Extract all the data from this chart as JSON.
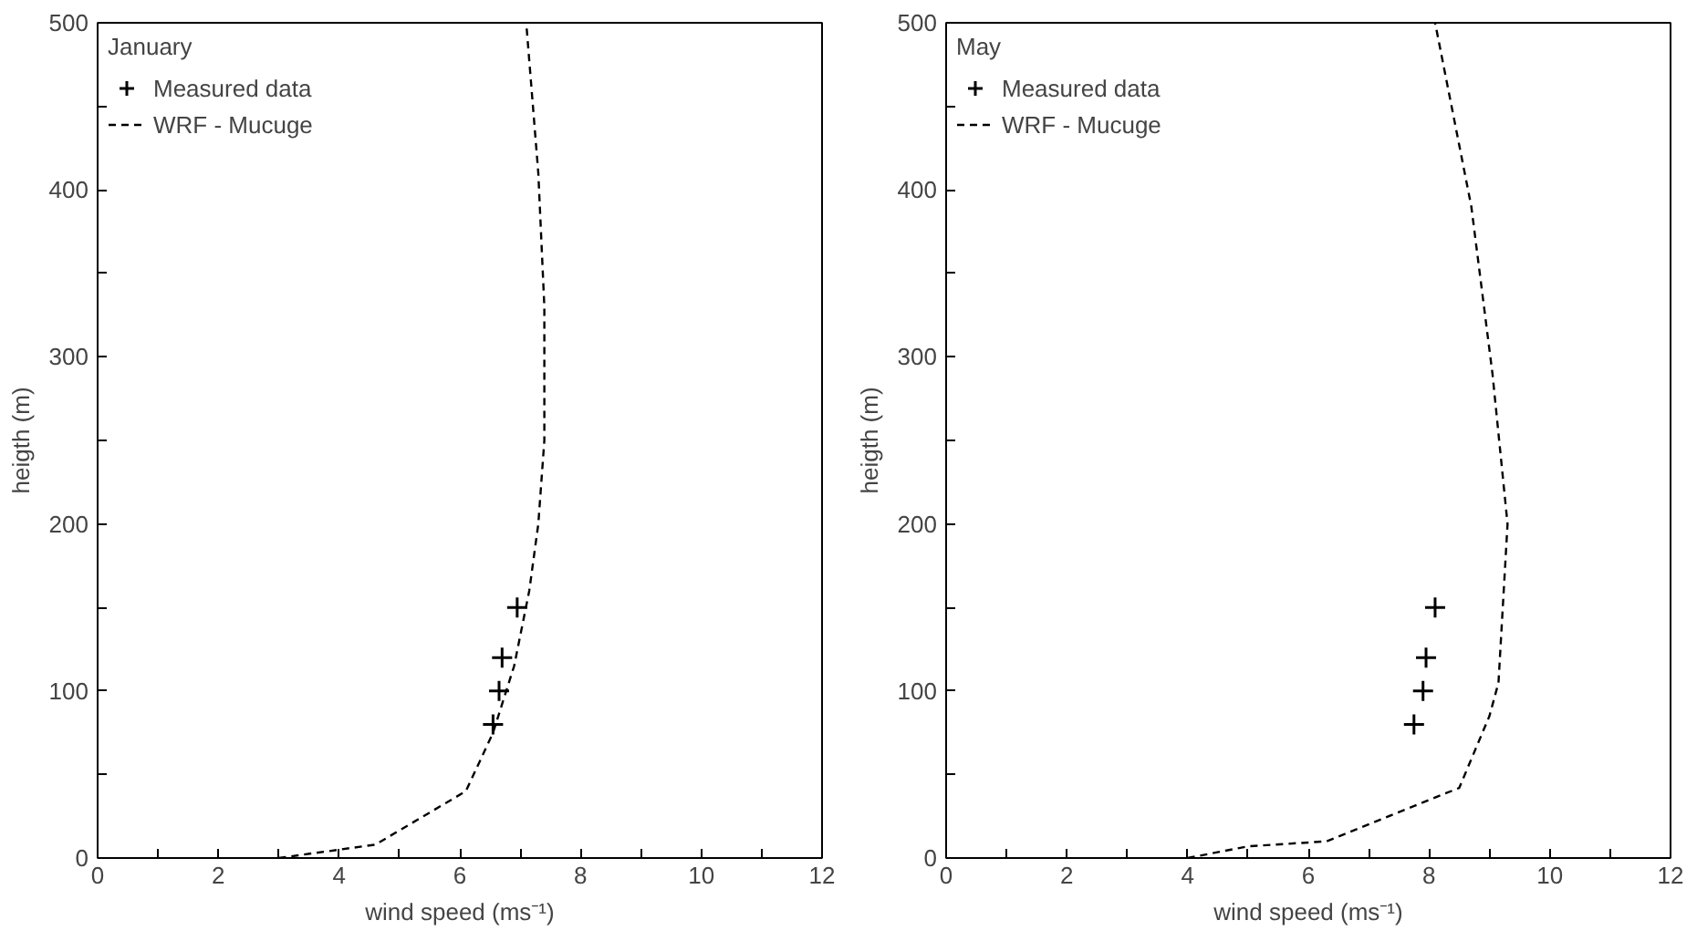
{
  "chart_data": [
    {
      "type": "line",
      "legend_title": "January",
      "xlabel": "wind speed (ms⁻¹)",
      "ylabel": "heigth (m)",
      "xlim": [
        0,
        12
      ],
      "ylim": [
        0,
        500
      ],
      "xticks": [
        0,
        {
          "value": 1,
          "label": null
        },
        2,
        {
          "value": 3,
          "label": null
        },
        4,
        {
          "value": 5,
          "label": null
        },
        6,
        {
          "value": 7,
          "label": null
        },
        8,
        {
          "value": 9,
          "label": null
        },
        10,
        {
          "value": 11,
          "label": null
        },
        12
      ],
      "yticks": [
        0,
        {
          "value": 50,
          "label": null
        },
        100,
        {
          "value": 150,
          "label": null
        },
        200,
        {
          "value": 250,
          "label": null
        },
        300,
        {
          "value": 350,
          "label": null
        },
        400,
        {
          "value": 450,
          "label": null
        },
        500
      ],
      "grid": false,
      "legend": "top left",
      "series": [
        {
          "name": "Measured data",
          "type": "scatter",
          "marker": "cross",
          "color": "#000000",
          "x": [
            6.55,
            6.65,
            6.7,
            6.95
          ],
          "values": [
            80,
            100,
            120,
            150
          ]
        },
        {
          "name": "WRF - Mucuge",
          "line_style": "dashed",
          "marker": "none",
          "color": "#000000",
          "x": [
            3.0,
            4.6,
            6.1,
            6.55,
            6.9,
            7.15,
            7.3,
            7.4,
            7.4,
            7.3,
            7.1
          ],
          "values": [
            0,
            8,
            40,
            75,
            115,
            160,
            200,
            250,
            330,
            410,
            500
          ]
        }
      ]
    },
    {
      "type": "line",
      "legend_title": "May",
      "xlabel": "wind speed (ms⁻¹)",
      "ylabel": "heigth (m)",
      "xlim": [
        0,
        12
      ],
      "ylim": [
        0,
        500
      ],
      "xticks": [
        0,
        {
          "value": 1,
          "label": null
        },
        2,
        {
          "value": 3,
          "label": null
        },
        4,
        {
          "value": 5,
          "label": null
        },
        6,
        {
          "value": 7,
          "label": null
        },
        8,
        {
          "value": 9,
          "label": null
        },
        10,
        {
          "value": 11,
          "label": null
        },
        12
      ],
      "yticks": [
        0,
        {
          "value": 50,
          "label": null
        },
        100,
        {
          "value": 150,
          "label": null
        },
        200,
        {
          "value": 250,
          "label": null
        },
        300,
        {
          "value": 350,
          "label": null
        },
        400,
        {
          "value": 450,
          "label": null
        },
        500
      ],
      "grid": false,
      "legend": "top left",
      "series": [
        {
          "name": "Measured data",
          "type": "scatter",
          "marker": "cross",
          "color": "#000000",
          "x": [
            7.75,
            7.9,
            7.95,
            8.1
          ],
          "values": [
            80,
            100,
            120,
            150
          ]
        },
        {
          "name": "WRF - Mucuge",
          "line_style": "dashed",
          "marker": "none",
          "color": "#000000",
          "x": [
            4.0,
            5.0,
            6.3,
            8.5,
            9.0,
            9.15,
            9.3,
            9.05,
            8.7,
            8.1
          ],
          "values": [
            0,
            7,
            10,
            42,
            85,
            105,
            200,
            290,
            390,
            500
          ]
        }
      ]
    }
  ]
}
